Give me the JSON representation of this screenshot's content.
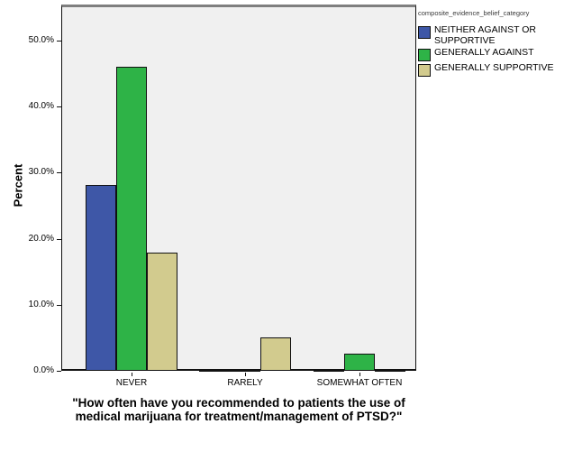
{
  "chart_data": {
    "type": "bar",
    "title": "",
    "xlabel": "\"How often have you recommended to patients the use of medical marijuana for treatment/management of PTSD?\"",
    "ylabel": "Percent",
    "categories": [
      "NEVER",
      "RARELY",
      "SOMEWHAT OFTEN"
    ],
    "series": [
      {
        "name": "NEITHER AGAINST OR SUPPORTIVE",
        "color": "#3E57A7",
        "values": [
          28.2,
          0,
          0
        ]
      },
      {
        "name": "GENERALLY AGAINST",
        "color": "#2EB347",
        "values": [
          46.1,
          0,
          2.6
        ]
      },
      {
        "name": "GENERALLY SUPPORTIVE",
        "color": "#D2CB8E",
        "values": [
          17.9,
          5.1,
          0
        ]
      }
    ],
    "ylim": [
      0,
      55
    ],
    "yticks": [
      {
        "value": 0,
        "label": "0.0%"
      },
      {
        "value": 10,
        "label": "10.0%"
      },
      {
        "value": 20,
        "label": "20.0%"
      },
      {
        "value": 30,
        "label": "30.0%"
      },
      {
        "value": 40,
        "label": "40.0%"
      },
      {
        "value": 50,
        "label": "50.0%"
      }
    ],
    "grid": false,
    "legend_position": "top-right-outside"
  },
  "legend": {
    "title": "composite_evidence_belief_category"
  },
  "colors": {
    "plot_background": "#F0F0F0",
    "frame": "#111111",
    "frame_top": "#7F7F7F"
  }
}
